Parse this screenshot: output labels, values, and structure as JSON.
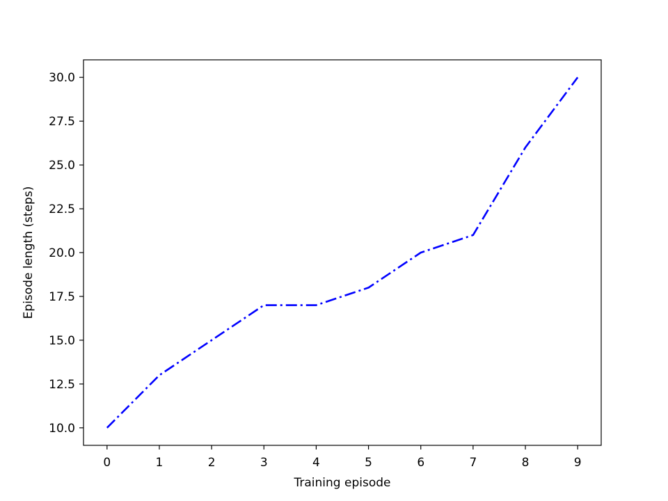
{
  "chart_data": {
    "type": "line",
    "title": "",
    "xlabel": "Training episode",
    "ylabel": "Episode length (steps)",
    "x": [
      0,
      1,
      2,
      3,
      4,
      5,
      6,
      7,
      8,
      9
    ],
    "series": [
      {
        "values": [
          10,
          13,
          15,
          17,
          17,
          18,
          20,
          21,
          26,
          30
        ],
        "color": "#0000ff",
        "line_style": "dash-dot"
      }
    ],
    "xlim": [
      -0.45,
      9.45
    ],
    "ylim": [
      9.0,
      31.0
    ],
    "xticks": [
      0,
      1,
      2,
      3,
      4,
      5,
      6,
      7,
      8,
      9
    ],
    "xtick_labels": [
      "0",
      "1",
      "2",
      "3",
      "4",
      "5",
      "6",
      "7",
      "8",
      "9"
    ],
    "yticks": [
      10,
      12.5,
      15,
      17.5,
      20,
      22.5,
      25,
      27.5,
      30
    ],
    "ytick_labels": [
      "10.0",
      "12.5",
      "15.0",
      "17.5",
      "20.0",
      "22.5",
      "25.0",
      "27.5",
      "30.0"
    ],
    "grid": false,
    "legend": "none"
  }
}
